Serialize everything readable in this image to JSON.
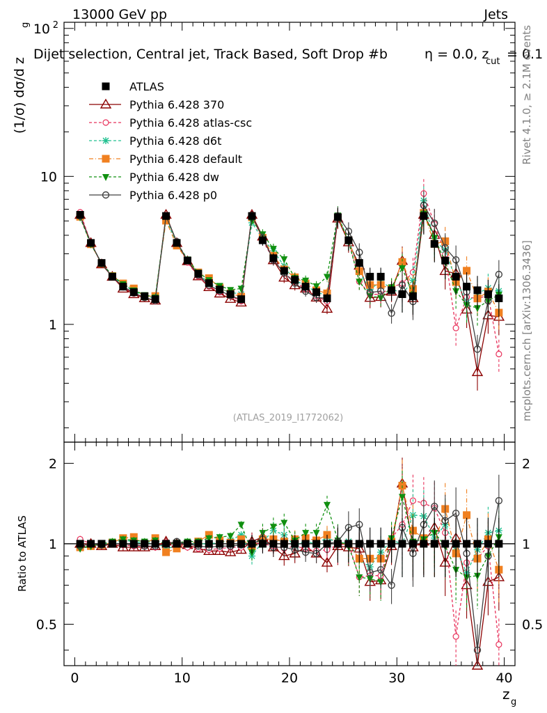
{
  "chart_data": {
    "type": "scatter",
    "header_left": "13000 GeV pp",
    "header_right": "Jets",
    "title": "Dijet selection, Central jet, Track Based, Soft Drop #b",
    "title_eta": "η = 0.0, z",
    "title_cut": "cut",
    "title_tail": " = 0.1",
    "ylabel_main": "(1/σ) dσ/d z",
    "ylabel_sub": "g",
    "ylabel_ratio": "Ratio to ATLAS",
    "xlabel": "z",
    "xlabel_sub": "g",
    "side_label_top": "Rivet 4.1.0, ≥ 2.1M events",
    "side_label_bottom": "mcplots.cern.ch [arXiv:1306.3436]",
    "watermark": "(ATLAS_2019_I1772062)",
    "xlim": [
      -1,
      41
    ],
    "ylim_main": [
      0.16,
      110
    ],
    "ylim_ratio": [
      0.35,
      2.4
    ],
    "x_ticks": [
      "0",
      "10",
      "20",
      "30",
      "40"
    ],
    "y_ticks_main": [
      "1",
      "10",
      "10"
    ],
    "y_tick_exp": "2",
    "y_ticks_ratio": [
      "0.5",
      "1",
      "2"
    ],
    "x": [
      0.5,
      1.5,
      2.5,
      3.5,
      4.5,
      5.5,
      6.5,
      7.5,
      8.5,
      9.5,
      10.5,
      11.5,
      12.5,
      13.5,
      14.5,
      15.5,
      16.5,
      17.5,
      18.5,
      19.5,
      20.5,
      21.5,
      22.5,
      23.5,
      24.5,
      25.5,
      26.5,
      27.5,
      28.5,
      29.5,
      30.5,
      31.5,
      32.5,
      33.5,
      34.5,
      35.5,
      36.5,
      37.5,
      38.5,
      39.5
    ],
    "data_values": [
      5.5,
      3.55,
      2.6,
      2.1,
      1.8,
      1.65,
      1.55,
      1.48,
      5.4,
      3.55,
      2.7,
      2.2,
      1.9,
      1.72,
      1.6,
      1.48,
      5.4,
      3.7,
      2.8,
      2.3,
      2.0,
      1.8,
      1.65,
      1.5,
      5.3,
      3.7,
      2.6,
      2.1,
      2.1,
      1.7,
      1.6,
      1.55,
      5.4,
      3.5,
      2.7,
      2.1,
      1.8,
      1.7,
      1.6,
      1.5
    ],
    "series": [
      {
        "name": "ATLAS",
        "color": "#000000",
        "marker": "square",
        "style": "none",
        "ratio": [
          1,
          1,
          1,
          1,
          1,
          1,
          1,
          1,
          1,
          1,
          1,
          1,
          1,
          1,
          1,
          1,
          1,
          1,
          1,
          1,
          1,
          1,
          1,
          1,
          1,
          1,
          1,
          1,
          1,
          1,
          1,
          1,
          1,
          1,
          1,
          1,
          1,
          1,
          1,
          1
        ]
      },
      {
        "name": "Pythia 6.428 370",
        "color": "#8b0000",
        "marker": "triangle",
        "style": "solid",
        "ratio": [
          1.0,
          1.0,
          0.98,
          1.0,
          0.97,
          0.97,
          0.97,
          0.98,
          1.02,
          1.0,
          0.99,
          0.96,
          0.94,
          0.94,
          0.93,
          0.95,
          1.02,
          1.06,
          0.97,
          0.9,
          0.92,
          0.97,
          0.92,
          0.85,
          0.98,
          0.97,
          0.96,
          0.72,
          0.73,
          0.98,
          1.68,
          0.97,
          1.02,
          1.15,
          0.85,
          1.05,
          0.7,
          0.28,
          0.72,
          0.75
        ]
      },
      {
        "name": "Pythia 6.428 atlas-csc",
        "color": "#e8305a",
        "marker": "circle",
        "style": "dashed",
        "ratio": [
          1.04,
          1.0,
          0.99,
          1.0,
          0.99,
          0.98,
          0.98,
          0.97,
          1.01,
          1.0,
          0.97,
          0.96,
          0.95,
          0.96,
          0.97,
          0.97,
          1.01,
          1.0,
          0.98,
          0.96,
          0.98,
          0.96,
          0.94,
          0.95,
          0.99,
          1.0,
          0.75,
          0.76,
          0.76,
          1.05,
          1.18,
          1.45,
          1.42,
          1.36,
          1.1,
          0.45,
          0.85,
          0.88,
          0.98,
          0.42
        ]
      },
      {
        "name": "Pythia 6.428 d6t",
        "color": "#20c090",
        "marker": "star",
        "style": "dashed",
        "ratio": [
          0.97,
          0.98,
          1.0,
          1.0,
          1.03,
          1.02,
          1.0,
          1.02,
          0.96,
          0.98,
          1.01,
          1.0,
          1.0,
          1.01,
          1.03,
          1.08,
          0.9,
          1.02,
          1.12,
          1.08,
          0.98,
          1.03,
          0.99,
          1.06,
          1.0,
          1.02,
          0.87,
          0.82,
          0.93,
          1.03,
          1.0,
          1.28,
          1.27,
          1.05,
          1.18,
          0.95,
          0.78,
          0.95,
          1.1,
          1.12
        ]
      },
      {
        "name": "Pythia 6.428 default",
        "color": "#f08020",
        "marker": "square",
        "style": "dashdot",
        "ratio": [
          0.97,
          0.98,
          0.99,
          1.01,
          1.05,
          1.06,
          1.0,
          1.05,
          0.93,
          0.96,
          1.0,
          1.02,
          1.08,
          1.03,
          1.01,
          1.04,
          0.98,
          1.04,
          1.04,
          1.02,
          1.04,
          1.05,
          1.03,
          1.08,
          1.0,
          1.0,
          0.88,
          0.88,
          0.88,
          1.02,
          1.65,
          1.12,
          1.05,
          1.0,
          1.35,
          0.92,
          1.28,
          0.88,
          1.04,
          0.8
        ]
      },
      {
        "name": "Pythia 6.428 dw",
        "color": "#109010",
        "marker": "invtriangle",
        "style": "dashed",
        "ratio": [
          0.96,
          0.98,
          1.0,
          1.02,
          1.04,
          1.03,
          1.02,
          1.03,
          1.0,
          1.01,
          1.02,
          1.02,
          1.05,
          1.06,
          1.07,
          1.18,
          0.93,
          1.1,
          1.16,
          1.2,
          1.03,
          1.1,
          1.1,
          1.4,
          1.03,
          0.98,
          0.75,
          0.74,
          0.72,
          1.05,
          1.5,
          1.02,
          1.04,
          1.1,
          0.98,
          0.8,
          0.75,
          0.76,
          0.9,
          1.06
        ]
      },
      {
        "name": "Pythia 6.428 p0",
        "color": "#404040",
        "marker": "opencircle",
        "style": "solid",
        "ratio": [
          0.98,
          1.0,
          0.99,
          1.0,
          1.0,
          0.99,
          0.98,
          0.98,
          1.0,
          1.02,
          1.0,
          0.98,
          0.97,
          0.98,
          0.98,
          0.99,
          1.0,
          1.04,
          0.97,
          0.97,
          0.95,
          0.93,
          0.92,
          1.0,
          1.02,
          1.15,
          1.18,
          0.78,
          0.8,
          0.7,
          1.15,
          0.92,
          1.18,
          1.38,
          1.22,
          1.3,
          0.92,
          0.4,
          0.9,
          1.45
        ]
      }
    ]
  }
}
